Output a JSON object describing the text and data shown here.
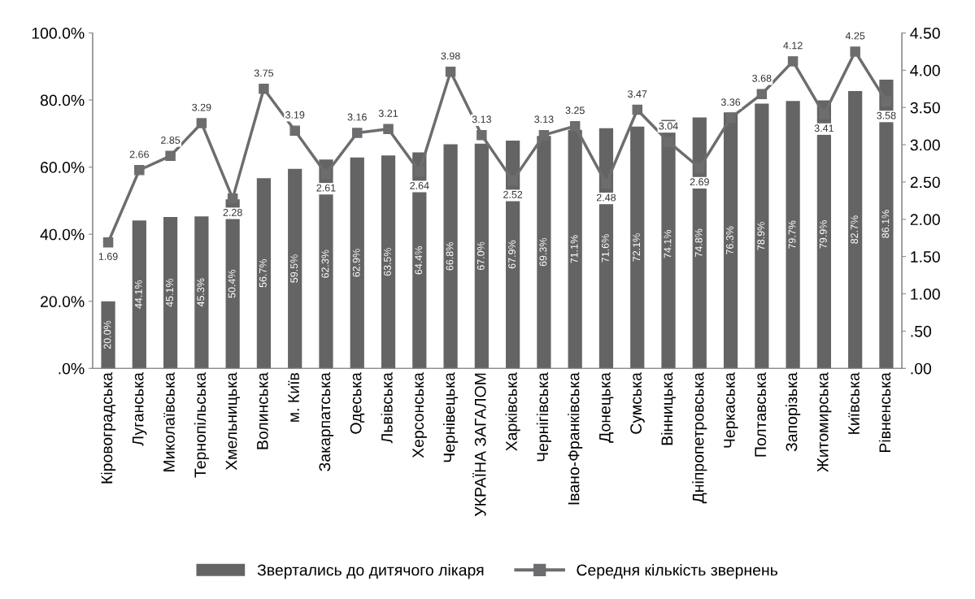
{
  "chart_data": {
    "type": "bar",
    "categories": [
      "Кіровоградська",
      "Луганська",
      "Миколаївська",
      "Тернопільська",
      "Хмельницька",
      "Волинська",
      "м. Київ",
      "Закарпатська",
      "Одеська",
      "Львівська",
      "Херсонська",
      "Чернівецька",
      "УКРАЇНА ЗАГАЛОМ",
      "Харківська",
      "Чернігівська",
      "Івано-Франківська",
      "Донецька",
      "Сумська",
      "Вінницька",
      "Дніпропетровська",
      "Черкаська",
      "Полтавська",
      "Запорізька",
      "Житомирська",
      "Київська",
      "Рівненська"
    ],
    "series": [
      {
        "name": "Звертались до дитячого лікаря",
        "color": "#646464",
        "values": [
          20.0,
          44.1,
          45.1,
          45.3,
          50.4,
          56.7,
          59.5,
          62.3,
          62.9,
          63.5,
          64.4,
          66.8,
          67.0,
          67.9,
          69.3,
          71.1,
          71.6,
          72.1,
          74.1,
          74.8,
          76.3,
          78.9,
          79.7,
          79.9,
          82.7,
          86.1
        ],
        "value_labels": [
          "20.0%",
          "44.1%",
          "45.1%",
          "45.3%",
          "50.4%",
          "56.7%",
          "59.5%",
          "62.3%",
          "62.9%",
          "63.5%",
          "64.4%",
          "66.8%",
          "67.0%",
          "67.9%",
          "69.3%",
          "71.1%",
          "71.6%",
          "72.1%",
          "74.1%",
          "74.8%",
          "76.3%",
          "78.9%",
          "79.7%",
          "79.9%",
          "82.7%",
          "86.1%"
        ]
      },
      {
        "name": "Середня кількість звернень",
        "type": "line",
        "axis": "y2",
        "color": "#6d6d70",
        "marker": "square",
        "line_style": "solid",
        "values": [
          1.69,
          2.66,
          2.85,
          3.29,
          2.28,
          3.75,
          3.19,
          2.61,
          3.16,
          3.21,
          2.64,
          3.98,
          3.13,
          2.52,
          3.13,
          3.25,
          2.48,
          3.47,
          3.04,
          2.69,
          3.36,
          3.68,
          4.12,
          3.41,
          4.25,
          3.58
        ],
        "value_labels": [
          "1.69",
          "2.66",
          "2.85",
          "3.29",
          "2.28",
          "3.75",
          "3.19",
          "2.61",
          "3.16",
          "3.21",
          "2.64",
          "3.98",
          "3.13",
          "2.52",
          "3.13",
          "3.25",
          "2.48",
          "3.47",
          "3.04",
          "2.69",
          "3.36",
          "3.68",
          "4.12",
          "3.41",
          "4.25",
          "3.58"
        ]
      }
    ],
    "ylim": [
      0,
      100
    ],
    "yticks": [
      {
        "value": 0,
        "label": ".0%"
      },
      {
        "value": 20,
        "label": "20.0%"
      },
      {
        "value": 40,
        "label": "40.0%"
      },
      {
        "value": 60,
        "label": "60.0%"
      },
      {
        "value": 80,
        "label": "80.0%"
      },
      {
        "value": 100,
        "label": "100.0%"
      }
    ],
    "y2lim": [
      0,
      4.5
    ],
    "y2ticks": [
      {
        "value": 0,
        "label": ".00"
      },
      {
        "value": 0.5,
        "label": ".50"
      },
      {
        "value": 1,
        "label": "1.00"
      },
      {
        "value": 1.5,
        "label": "1.50"
      },
      {
        "value": 2,
        "label": "2.00"
      },
      {
        "value": 2.5,
        "label": "2.50"
      },
      {
        "value": 3,
        "label": "3.00"
      },
      {
        "value": 3.5,
        "label": "3.50"
      },
      {
        "value": 4,
        "label": "4.00"
      },
      {
        "value": 4.5,
        "label": "4.50"
      }
    ],
    "grid": false,
    "legend": "bottom"
  }
}
